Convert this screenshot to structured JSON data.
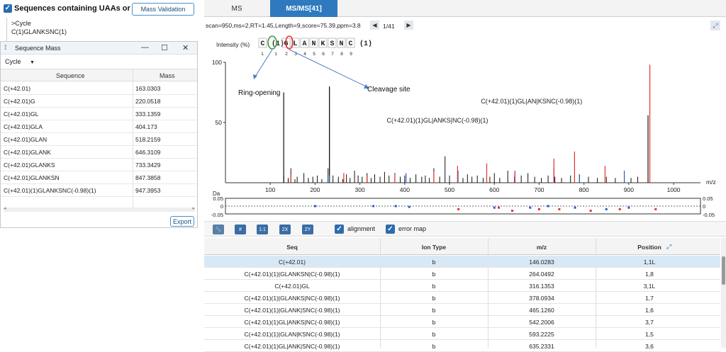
{
  "left": {
    "checkbox_label": "Sequences containing UAAs or UNs",
    "mass_validation_btn": "Mass Validation",
    "tree_cycle": ">Cycle",
    "tree_seq": "C(1)GLANKSNC(1)"
  },
  "seq_window": {
    "title": "Sequence Mass",
    "dropdown": "Cycle",
    "headers": [
      "Sequence",
      "Mass"
    ],
    "rows": [
      [
        "C(+42.01)",
        "163.0303"
      ],
      [
        "C(+42.01)G",
        "220.0518"
      ],
      [
        "C(+42.01)GL",
        "333.1359"
      ],
      [
        "C(+42.01)GLA",
        "404.173"
      ],
      [
        "C(+42.01)GLAN",
        "518.2159"
      ],
      [
        "C(+42.01)GLANK",
        "646.3109"
      ],
      [
        "C(+42.01)GLANKS",
        "733.3429"
      ],
      [
        "C(+42.01)GLANKSN",
        "847.3858"
      ],
      [
        "C(+42.01)(1)GLANKSNC(-0.98)(1)",
        "947.3953"
      ]
    ],
    "export_label": "Export"
  },
  "tabs": {
    "ms": "MS",
    "msms": "MS/MS[41]"
  },
  "scan_info": "scan=950,ms=2,RT=1.45,Length=9,score=75.39,ppm=3.8",
  "page_indicator": "1/41",
  "intensity_label": "Intensity (%)",
  "sequence_display": {
    "letters": [
      "C",
      "(1)",
      "G",
      "L",
      "A",
      "N",
      "K",
      "S",
      "N",
      "C",
      "(1)"
    ],
    "top_numbers": [
      "1",
      "1"
    ],
    "bottom_numbers": [
      "2",
      "3",
      "4",
      "5",
      "6",
      "7",
      "8",
      "9"
    ]
  },
  "annotations": {
    "ring_opening": "Ring-opening",
    "cleavage_site": "Cleavage site",
    "peak_label_1": "C(+42.01)(1)GL|ANKS|NC(-0.98)(1)",
    "peak_label_2": "C(+42.01)(1)GL|AN|KSNC(-0.98)(1)"
  },
  "colors": {
    "accent": "#2f7abf",
    "peak": "#111111",
    "b_ion": "#e53030",
    "y_ion": "#2c5ad6",
    "ring_marker": "#3a9a3a",
    "cleavage_marker": "#e53030"
  },
  "chart_data": {
    "type": "bar",
    "title": "",
    "ylabel": "Intensity (%)",
    "xlabel": "m/z",
    "xlim": [
      0,
      1060
    ],
    "ylim": [
      0,
      100
    ],
    "x_ticks": [
      100,
      200,
      300,
      400,
      500,
      600,
      700,
      800,
      900,
      1000
    ],
    "y_ticks": [
      0,
      50,
      100
    ],
    "peaks_black": [
      [
        130,
        6
      ],
      [
        140,
        4
      ],
      [
        146,
        12
      ],
      [
        155,
        3
      ],
      [
        160,
        5
      ],
      [
        175,
        8
      ],
      [
        185,
        4
      ],
      [
        195,
        5
      ],
      [
        205,
        6
      ],
      [
        215,
        3
      ],
      [
        229,
        12
      ],
      [
        232,
        78
      ],
      [
        240,
        6
      ],
      [
        252,
        5
      ],
      [
        262,
        3
      ],
      [
        270,
        7
      ],
      [
        278,
        4
      ],
      [
        288,
        10
      ],
      [
        296,
        6
      ],
      [
        305,
        5
      ],
      [
        316,
        8
      ],
      [
        325,
        4
      ],
      [
        333,
        7
      ],
      [
        345,
        5
      ],
      [
        355,
        9
      ],
      [
        365,
        6
      ],
      [
        378,
        8
      ],
      [
        390,
        5
      ],
      [
        400,
        6
      ],
      [
        412,
        4
      ],
      [
        425,
        7
      ],
      [
        438,
        5
      ],
      [
        446,
        6
      ],
      [
        455,
        4
      ],
      [
        465,
        12
      ],
      [
        478,
        5
      ],
      [
        490,
        22
      ],
      [
        500,
        6
      ],
      [
        518,
        9
      ],
      [
        530,
        4
      ],
      [
        540,
        7
      ],
      [
        550,
        5
      ],
      [
        562,
        6
      ],
      [
        575,
        4
      ],
      [
        590,
        5
      ],
      [
        600,
        8
      ],
      [
        612,
        4
      ],
      [
        630,
        10
      ],
      [
        645,
        5
      ],
      [
        660,
        6
      ],
      [
        675,
        8
      ],
      [
        690,
        5
      ],
      [
        705,
        4
      ],
      [
        720,
        6
      ],
      [
        735,
        5
      ],
      [
        750,
        4
      ],
      [
        770,
        6
      ],
      [
        790,
        7
      ],
      [
        810,
        5
      ],
      [
        830,
        4
      ],
      [
        850,
        5
      ],
      [
        870,
        4
      ],
      [
        890,
        6
      ],
      [
        905,
        4
      ],
      [
        920,
        5
      ]
    ],
    "peak_tall_1": [
      130,
      75
    ],
    "peak_tall_2": [
      232,
      80
    ],
    "peak_tall_3": [
      943,
      56
    ],
    "peaks_red": [
      [
        146,
        7
      ],
      [
        264,
        8
      ],
      [
        316,
        6
      ],
      [
        378,
        7
      ],
      [
        465,
        9
      ],
      [
        518,
        14
      ],
      [
        583,
        16
      ],
      [
        646,
        10
      ],
      [
        733,
        20
      ],
      [
        779,
        26
      ],
      [
        847,
        14
      ],
      [
        947,
        98
      ]
    ],
    "peaks_blue": [
      [
        232,
        6
      ],
      [
        403,
        8
      ],
      [
        519,
        10
      ],
      [
        646,
        9
      ],
      [
        733,
        12
      ],
      [
        790,
        7
      ],
      [
        890,
        10
      ]
    ],
    "error_axis": {
      "label": "Da",
      "ticks": [
        "0.05",
        "0",
        "-0.05"
      ]
    },
    "error_points_blue": [
      [
        200,
        0.0
      ],
      [
        330,
        0.0
      ],
      [
        380,
        0.0
      ],
      [
        410,
        -0.005
      ],
      [
        600,
        -0.01
      ],
      [
        680,
        -0.01
      ],
      [
        720,
        0.0
      ],
      [
        780,
        -0.01
      ],
      [
        850,
        -0.02
      ],
      [
        900,
        -0.01
      ]
    ],
    "error_points_red": [
      [
        520,
        -0.02
      ],
      [
        610,
        -0.01
      ],
      [
        640,
        -0.03
      ],
      [
        700,
        -0.02
      ],
      [
        745,
        -0.02
      ],
      [
        815,
        -0.03
      ],
      [
        880,
        -0.02
      ],
      [
        960,
        -0.02
      ]
    ]
  },
  "toolbar": {
    "btn1": "#",
    "btn2": "1:1",
    "btn3": "2X",
    "btn4": "2Y",
    "alignment_label": "alignment",
    "error_map_label": "error map"
  },
  "table": {
    "headers": [
      "Seq",
      "Ion Type",
      "m/z",
      "Position"
    ],
    "rows": [
      [
        "C(+42.01)",
        "b",
        "146.0283",
        "1,1L"
      ],
      [
        "C(+42.01)(1)|GLANKSN|C(-0.98)(1)",
        "b",
        "264.0492",
        "1,8"
      ],
      [
        "C(+42.01)GL",
        "b",
        "316.1353",
        "3,1L"
      ],
      [
        "C(+42.01)(1)|GLANKS|NC(-0.98)(1)",
        "b",
        "378.0934",
        "1,7"
      ],
      [
        "C(+42.01)(1)|GLANK|SNC(-0.98)(1)",
        "b",
        "465.1260",
        "1,6"
      ],
      [
        "C(+42.01)(1)GL|ANKS|NC(-0.98)(1)",
        "b",
        "542.2006",
        "3,7"
      ],
      [
        "C(+42.01)(1)|GLAN|KSNC(-0.98)(1)",
        "b",
        "593.2225",
        "1,5"
      ],
      [
        "C(+42.01)(1)GL|ANK|SNC(-0.98)(1)",
        "b",
        "635.2331",
        "3,6"
      ]
    ]
  }
}
